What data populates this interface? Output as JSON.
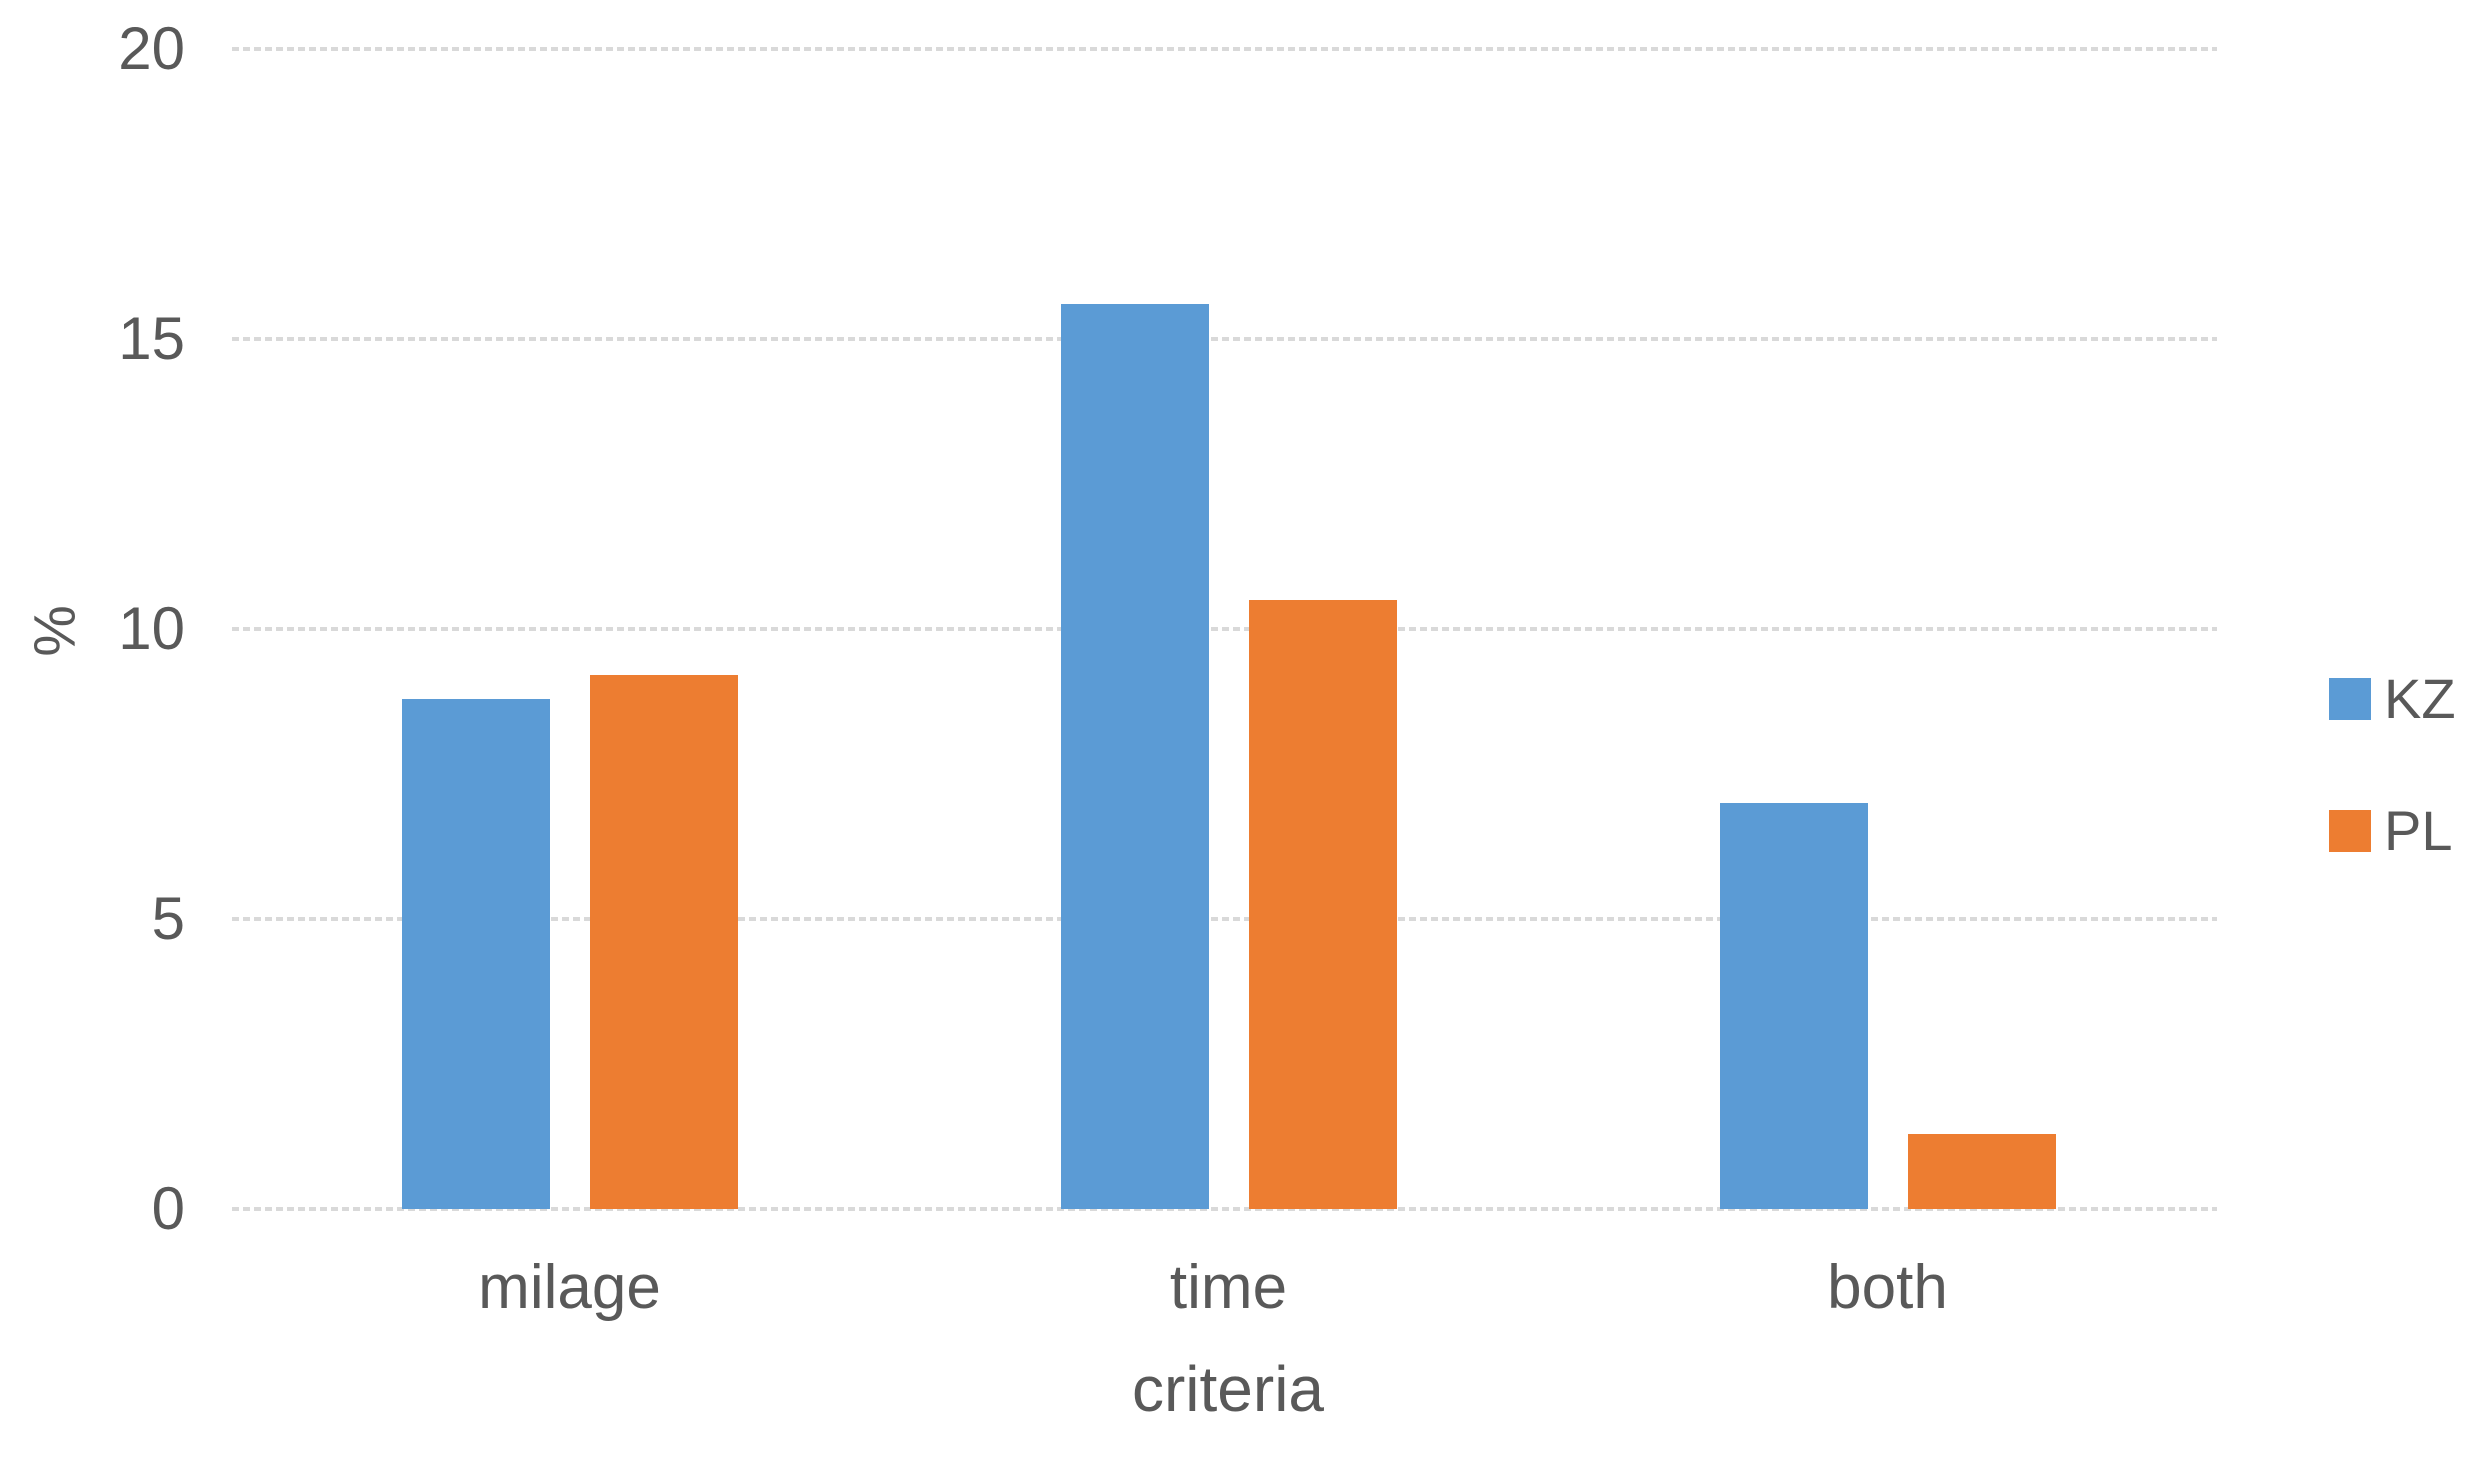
{
  "chart_data": {
    "type": "bar",
    "title": "",
    "categories": [
      "milage",
      "time",
      "both"
    ],
    "series": [
      {
        "name": "KZ",
        "color": "#5B9BD5",
        "values": [
          8.8,
          15.6,
          7.0
        ]
      },
      {
        "name": "PL",
        "color": "#ED7D31",
        "values": [
          9.2,
          10.5,
          1.3
        ]
      }
    ],
    "xlabel": "criteria",
    "ylabel": "%",
    "ylim": [
      0,
      20
    ],
    "yticks": [
      0,
      5,
      10,
      15,
      20
    ],
    "grid": true,
    "gridline_color": "#D9D9D9",
    "text_color": "#595959",
    "legend_position": "right",
    "legend_labels": [
      "KZ",
      "PL"
    ]
  }
}
